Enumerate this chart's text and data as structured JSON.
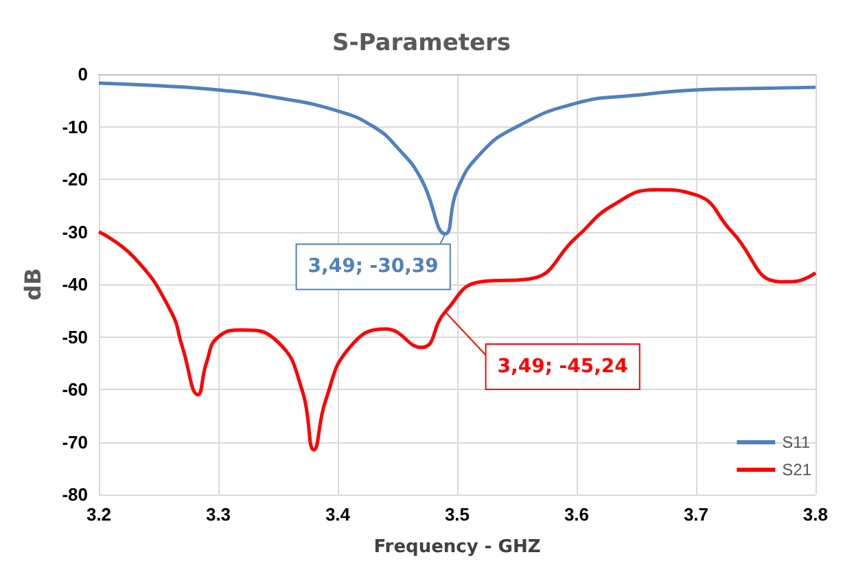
{
  "chart_data": {
    "type": "line",
    "title": "S-Parameters",
    "xlabel": "Frequency - GHZ",
    "ylabel": "dB",
    "xlim": [
      3.2,
      3.8
    ],
    "xticks": [
      3.2,
      3.3,
      3.4,
      3.5,
      3.6,
      3.7,
      3.8
    ],
    "ylim": [
      -80,
      0
    ],
    "yticks": [
      -80,
      -70,
      -60,
      -50,
      -40,
      -30,
      -20,
      -10,
      0
    ],
    "grid": true,
    "legend": "bottom right",
    "marker": "none",
    "line_style": "solid",
    "series": [
      {
        "name": "S11",
        "color": "#4f81bd",
        "x": [
          3.2,
          3.25,
          3.3,
          3.35,
          3.4,
          3.43,
          3.45,
          3.47,
          3.49,
          3.5,
          3.52,
          3.55,
          3.6,
          3.65,
          3.7,
          3.75,
          3.8
        ],
        "values": [
          -1.7,
          -2.2,
          -3,
          -4.5,
          -7,
          -10,
          -14,
          -20,
          -30.39,
          -22,
          -15,
          -10,
          -5.5,
          -4,
          -3,
          -2.7,
          -2.5
        ]
      },
      {
        "name": "S21",
        "color": "#ff0000",
        "x": [
          3.2,
          3.23,
          3.26,
          3.27,
          3.283,
          3.29,
          3.3,
          3.32,
          3.35,
          3.37,
          3.38,
          3.39,
          3.41,
          3.44,
          3.47,
          3.49,
          3.52,
          3.56,
          3.6,
          3.63,
          3.667,
          3.7,
          3.73,
          3.77,
          3.78,
          3.8
        ],
        "values": [
          -30,
          -35,
          -45,
          -52,
          -61,
          -55,
          -50,
          -48.7,
          -51,
          -60,
          -71.5,
          -62,
          -52,
          -48.5,
          -52,
          -45.24,
          -39.5,
          -39,
          -31,
          -25,
          -22,
          -23,
          -30,
          -39.5,
          -39.5,
          -37.8
        ]
      }
    ],
    "annotations": [
      {
        "text": "3,49; -30,39",
        "x": 3.49,
        "y": -30.39
      },
      {
        "text": "3,49; -45,24",
        "x": 3.49,
        "y": -45.24
      }
    ]
  }
}
